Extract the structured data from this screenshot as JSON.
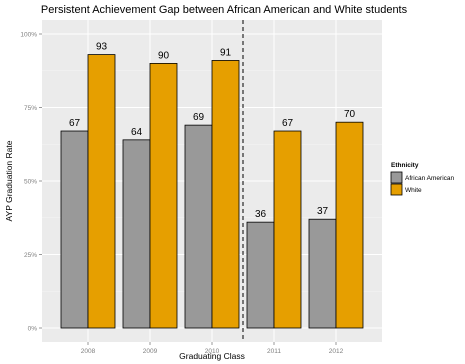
{
  "chart_data": {
    "type": "bar",
    "title": "Persistent Achievement Gap between African American and White students",
    "xlabel": "Graduating Class",
    "ylabel": "AYP Graduation Rate",
    "categories": [
      "2008",
      "2009",
      "2010",
      "2011",
      "2012"
    ],
    "series": [
      {
        "name": "African American",
        "values": [
          67,
          64,
          69,
          36,
          37
        ],
        "color": "#999999"
      },
      {
        "name": "White",
        "values": [
          93,
          90,
          91,
          67,
          70
        ],
        "color": "#e69f00"
      }
    ],
    "data_labels": [
      [
        "67",
        "64",
        "69",
        "36",
        "37"
      ],
      [
        "93",
        "90",
        "91",
        "67",
        "70"
      ]
    ],
    "ylim": [
      0,
      100
    ],
    "yticks": [
      0,
      25,
      50,
      75,
      100
    ],
    "ytick_labels": [
      "0%",
      "25%",
      "50%",
      "75%",
      "100%"
    ],
    "divider_between": [
      "2010",
      "2011"
    ],
    "grid": true,
    "panel_background": "#ebebeb",
    "legend": {
      "title": "Ethnicity",
      "position": "right"
    }
  }
}
